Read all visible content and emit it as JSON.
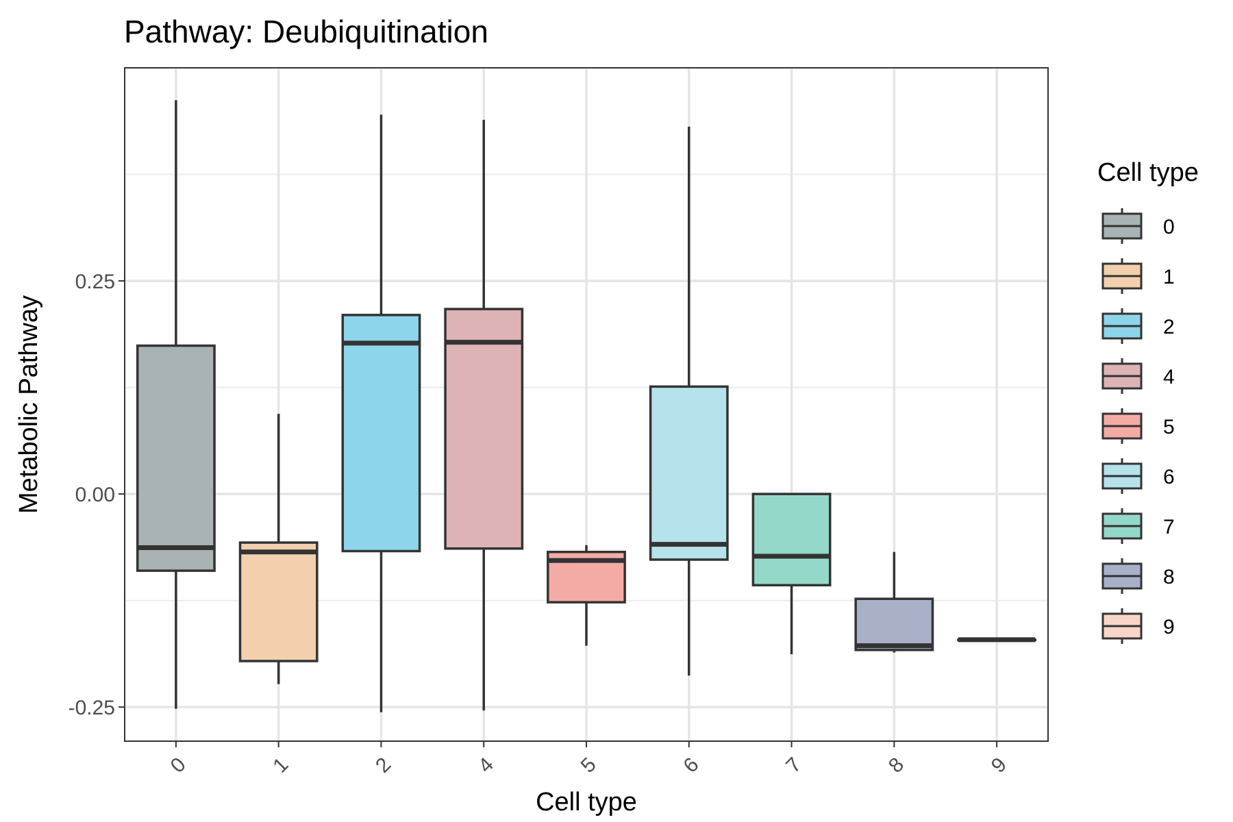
{
  "chart_data": {
    "type": "box",
    "title": "Pathway: Deubiquitination",
    "xlabel": "Cell type",
    "ylabel": "Metabolic Pathway",
    "ylim": [
      -0.29,
      0.5
    ],
    "yticks": [
      -0.25,
      0.0,
      0.25
    ],
    "ytick_labels": [
      "-0.25",
      "0.00",
      "0.25"
    ],
    "grid": true,
    "legend": {
      "title": "Cell type",
      "position": "right"
    },
    "categories": [
      "0",
      "1",
      "2",
      "4",
      "5",
      "6",
      "7",
      "8",
      "9"
    ],
    "boxes": [
      {
        "category": "0",
        "min": -0.252,
        "q1": -0.09,
        "median": -0.063,
        "q3": 0.174,
        "max": 0.462,
        "color": "#A9B2B4"
      },
      {
        "category": "1",
        "min": -0.223,
        "q1": -0.196,
        "median": -0.068,
        "q3": -0.057,
        "max": 0.094,
        "color": "#F2D0AE"
      },
      {
        "category": "2",
        "min": -0.256,
        "q1": -0.067,
        "median": 0.177,
        "q3": 0.21,
        "max": 0.445,
        "color": "#8DD5EA"
      },
      {
        "category": "4",
        "min": -0.254,
        "q1": -0.064,
        "median": 0.178,
        "q3": 0.217,
        "max": 0.439,
        "color": "#DEB3B6"
      },
      {
        "category": "5",
        "min": -0.178,
        "q1": -0.127,
        "median": -0.078,
        "q3": -0.068,
        "max": -0.06,
        "color": "#F5ABA5"
      },
      {
        "category": "6",
        "min": -0.213,
        "q1": -0.077,
        "median": -0.059,
        "q3": 0.126,
        "max": 0.431,
        "color": "#B5E2EB"
      },
      {
        "category": "7",
        "min": -0.188,
        "q1": -0.107,
        "median": -0.073,
        "q3": 0.0,
        "max": 0.0,
        "color": "#94D8CA"
      },
      {
        "category": "8",
        "min": -0.186,
        "q1": -0.183,
        "median": -0.178,
        "q3": -0.123,
        "max": -0.068,
        "color": "#A8B1C8"
      },
      {
        "category": "9",
        "min": -0.171,
        "q1": -0.171,
        "median": -0.171,
        "q3": -0.171,
        "max": -0.171,
        "color": "#F9D5C9"
      }
    ]
  }
}
